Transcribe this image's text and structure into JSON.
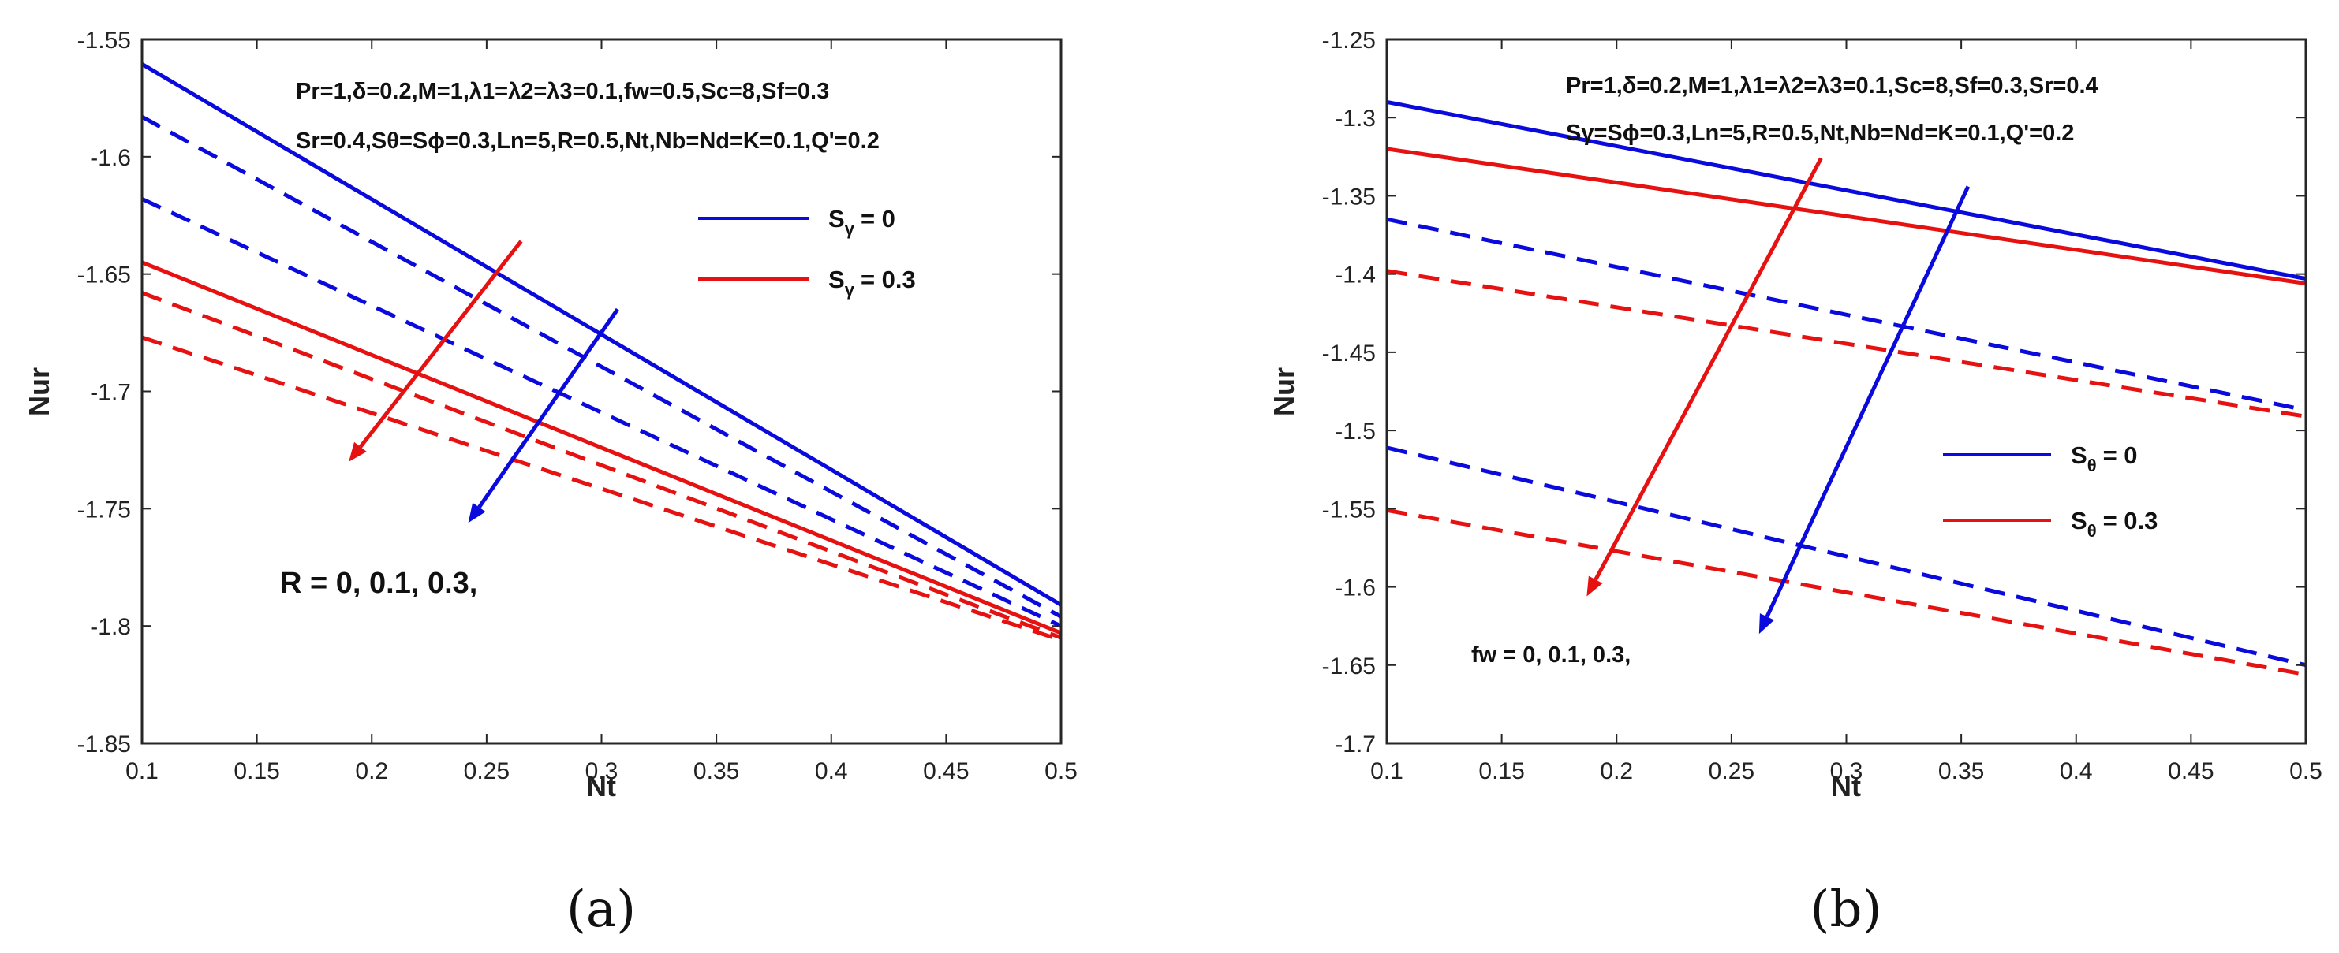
{
  "chart_data": [
    {
      "type": "line",
      "panel_label": "(a)",
      "xlabel": "Nt",
      "ylabel": "Nur",
      "xlim": [
        0.1,
        0.5
      ],
      "ylim": [
        -1.85,
        -1.55
      ],
      "xticks": [
        "0.1",
        "0.15",
        "0.2",
        "0.25",
        "0.3",
        "0.35",
        "0.4",
        "0.45",
        "0.5"
      ],
      "yticks": [
        "-1.85",
        "-1.8",
        "-1.75",
        "-1.7",
        "-1.65",
        "-1.6",
        "-1.55"
      ],
      "parameters_line1": "Pr=1,δ=0.2,M=1,λ1=λ2=λ3=0.1,fw=0.5,Sc=8,Sf=0.3",
      "parameters_line2": "Sr=0.4,Sθ=Sϕ=0.3,Ln=5,R=0.5,Nt,Nb=Nd=K=0.1,Q'=0.2",
      "legend_title_var": "S",
      "legend_subscript": "γ",
      "legend": [
        {
          "label": "Sγ = 0",
          "value": "= 0",
          "color": "#0a0add"
        },
        {
          "label": "Sγ = 0.3",
          "value": "= 0.3",
          "color": "#e61212"
        }
      ],
      "annotation": "R = 0, 0.1, 0.3,",
      "series": [
        {
          "name": "Sγ = 0, R = 0",
          "color": "#0a0add",
          "dash": "solid",
          "x": [
            0.1,
            0.5
          ],
          "y": [
            -1.5605,
            -1.791
          ]
        },
        {
          "name": "Sγ = 0, R = 0.1",
          "color": "#0a0add",
          "dash": "dashed",
          "x": [
            0.1,
            0.5
          ],
          "y": [
            -1.583,
            -1.796
          ]
        },
        {
          "name": "Sγ = 0, R = 0.3",
          "color": "#0a0add",
          "dash": "dashed",
          "x": [
            0.1,
            0.5
          ],
          "y": [
            -1.618,
            -1.8
          ]
        },
        {
          "name": "Sγ = 0.3, R = 0",
          "color": "#e61212",
          "dash": "solid",
          "x": [
            0.1,
            0.5
          ],
          "y": [
            -1.645,
            -1.803
          ]
        },
        {
          "name": "Sγ = 0.3, R = 0.1",
          "color": "#e61212",
          "dash": "dashed",
          "x": [
            0.1,
            0.5
          ],
          "y": [
            -1.658,
            -1.805
          ]
        },
        {
          "name": "Sγ = 0.3, R = 0.3",
          "color": "#e61212",
          "dash": "dashed",
          "x": [
            0.1,
            0.5
          ],
          "y": [
            -1.677,
            -1.806
          ]
        }
      ],
      "arrows": [
        {
          "color": "#e61212",
          "from": [
            0.265,
            -1.636
          ],
          "to": [
            0.19,
            -1.73
          ]
        },
        {
          "color": "#0a0add",
          "from": [
            0.307,
            -1.665
          ],
          "to": [
            0.242,
            -1.756
          ]
        }
      ]
    },
    {
      "type": "line",
      "panel_label": "(b)",
      "xlabel": "Nt",
      "ylabel": "Nur",
      "xlim": [
        0.1,
        0.5
      ],
      "ylim": [
        -1.7,
        -1.25
      ],
      "xticks": [
        "0.1",
        "0.15",
        "0.2",
        "0.25",
        "0.3",
        "0.35",
        "0.4",
        "0.45",
        "0.5"
      ],
      "yticks": [
        "-1.7",
        "-1.65",
        "-1.6",
        "-1.55",
        "-1.5",
        "-1.45",
        "-1.4",
        "-1.35",
        "-1.3",
        "-1.25"
      ],
      "parameters_line1": "Pr=1,δ=0.2,M=1,λ1=λ2=λ3=0.1,Sc=8,Sf=0.3,Sr=0.4",
      "parameters_line2": "Sγ=Sϕ=0.3,Ln=5,R=0.5,Nt,Nb=Nd=K=0.1,Q'=0.2",
      "legend_title_var": "S",
      "legend_subscript": "θ",
      "legend": [
        {
          "label": "Sθ = 0",
          "value": "= 0",
          "color": "#0a0add"
        },
        {
          "label": "Sθ = 0.3",
          "value": "= 0.3",
          "color": "#e61212"
        }
      ],
      "annotation": "fw = 0, 0.1, 0.3,",
      "series": [
        {
          "name": "Sθ = 0, fw = 0",
          "color": "#0a0add",
          "dash": "solid",
          "x": [
            0.1,
            0.5
          ],
          "y": [
            -1.29,
            -1.403
          ]
        },
        {
          "name": "Sθ = 0, fw = 0.1",
          "color": "#0a0add",
          "dash": "dashed",
          "x": [
            0.1,
            0.5
          ],
          "y": [
            -1.365,
            -1.487
          ]
        },
        {
          "name": "Sθ = 0, fw = 0.3",
          "color": "#0a0add",
          "dash": "dashed",
          "x": [
            0.1,
            0.5
          ],
          "y": [
            -1.511,
            -1.65
          ]
        },
        {
          "name": "Sθ = 0.3, fw = 0",
          "color": "#e61212",
          "dash": "solid",
          "x": [
            0.1,
            0.5
          ],
          "y": [
            -1.32,
            -1.406
          ]
        },
        {
          "name": "Sθ = 0.3, fw = 0.1",
          "color": "#e61212",
          "dash": "dashed",
          "x": [
            0.1,
            0.5
          ],
          "y": [
            -1.398,
            -1.491
          ]
        },
        {
          "name": "Sθ = 0.3, fw = 0.3",
          "color": "#e61212",
          "dash": "dashed",
          "x": [
            0.1,
            0.5
          ],
          "y": [
            -1.551,
            -1.656
          ]
        }
      ],
      "arrows": [
        {
          "color": "#e61212",
          "from": [
            0.289,
            -1.326
          ],
          "to": [
            0.187,
            -1.606
          ]
        },
        {
          "color": "#0a0add",
          "from": [
            0.353,
            -1.344
          ],
          "to": [
            0.262,
            -1.63
          ]
        }
      ]
    }
  ]
}
